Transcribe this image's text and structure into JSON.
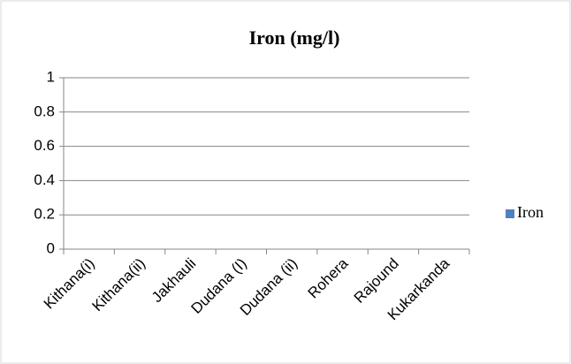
{
  "chart_data": {
    "type": "bar",
    "title": "Iron (mg/l)",
    "categories": [
      "Kithana(i)",
      "Kithana(ii)",
      "Jakhauli",
      "Dudana (I)",
      "Dudana (ii)",
      "Rohera",
      "Rajound",
      "Kukarkanda"
    ],
    "series": [
      {
        "name": "Iron",
        "color": "#4f81bd",
        "values": [
          0,
          0,
          0,
          0,
          0,
          0,
          0,
          0
        ]
      }
    ],
    "ylim": [
      0,
      1
    ],
    "yticks": [
      0,
      0.2,
      0.4,
      0.6,
      0.8,
      1
    ],
    "grid": true,
    "legend": "right"
  }
}
